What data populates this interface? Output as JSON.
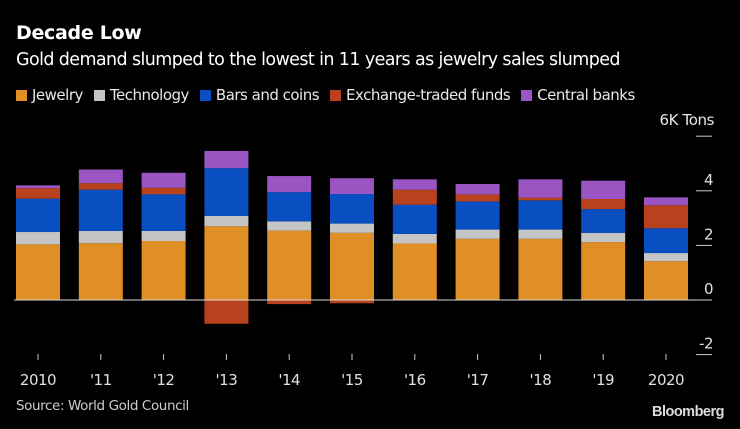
{
  "header": {
    "title": "Decade Low",
    "subtitle": "Gold demand slumped to the lowest in 11 years as jewelry sales slumped",
    "unit_label": "6K Tons"
  },
  "footer": {
    "source": "Source: World Gold Council",
    "brand": "Bloomberg"
  },
  "chart_data": {
    "type": "bar",
    "stacked": true,
    "title": "Decade Low",
    "subtitle": "Gold demand slumped to the lowest in 11 years as jewelry sales slumped",
    "xlabel": "",
    "ylabel": "Thousand tons",
    "ylim": [
      -2.6,
      6
    ],
    "yticks": [
      -2,
      0,
      2,
      4
    ],
    "ytick_labels": [
      "-2",
      "0",
      "2",
      "4"
    ],
    "top_tick_label": "6K Tons",
    "y_axis_side": "right",
    "grid": false,
    "legend_position": "top",
    "categories": [
      "2010",
      "'11",
      "'12",
      "'13",
      "'14",
      "'15",
      "'16",
      "'17",
      "'18",
      "'19",
      "2020"
    ],
    "series": [
      {
        "name": "Jewelry",
        "color": "#e08e26",
        "values": [
          2.04,
          2.08,
          2.16,
          2.7,
          2.54,
          2.46,
          2.07,
          2.24,
          2.24,
          2.12,
          1.42
        ]
      },
      {
        "name": "Technology",
        "color": "#c4c4c4",
        "values": [
          0.45,
          0.45,
          0.37,
          0.38,
          0.34,
          0.34,
          0.35,
          0.34,
          0.34,
          0.34,
          0.3
        ]
      },
      {
        "name": "Bars and coins",
        "color": "#0a4fc2",
        "values": [
          1.22,
          1.51,
          1.34,
          1.75,
          1.07,
          1.08,
          1.07,
          1.03,
          1.07,
          0.87,
          0.91
        ]
      },
      {
        "name": "Exchange-traded funds",
        "color": "#b8421e",
        "values": [
          0.39,
          0.24,
          0.24,
          -0.87,
          -0.15,
          -0.12,
          0.55,
          0.26,
          0.1,
          0.37,
          0.84
        ]
      },
      {
        "name": "Central banks",
        "color": "#9a55c2",
        "values": [
          0.1,
          0.5,
          0.55,
          0.63,
          0.59,
          0.58,
          0.38,
          0.38,
          0.67,
          0.67,
          0.29
        ]
      }
    ]
  }
}
